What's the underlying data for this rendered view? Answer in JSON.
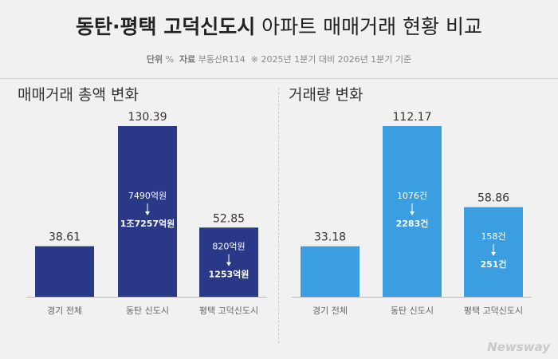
{
  "header": {
    "title_bold": "동탄·평택 고덕신도시",
    "title_light": "아파트 매매거래 현황 비교",
    "unit_label": "단위",
    "unit_value": "%",
    "source_label": "자료",
    "source_value": "부동산R114",
    "note": "※ 2025년 1분기 대비 2026년 1분기 기준"
  },
  "colors": {
    "left_bar": "#2a3888",
    "right_bar": "#3a9ee0"
  },
  "chart_data": [
    {
      "type": "bar",
      "title": "매매거래 총액 변화",
      "categories": [
        "경기 전체",
        "동탄 신도시",
        "평택 고덕신도시"
      ],
      "values": [
        38.61,
        130.39,
        52.85
      ],
      "value_labels": [
        "38.61",
        "130.39",
        "52.85"
      ],
      "annotations": [
        null,
        {
          "from": "7490억원",
          "to": "1조7257억원"
        },
        {
          "from": "820억원",
          "to": "1253억원"
        }
      ],
      "ylim": [
        0,
        130.39
      ],
      "grid": false
    },
    {
      "type": "bar",
      "title": "거래량 변화",
      "categories": [
        "경기 전체",
        "동탄 신도시",
        "평택 고덕신도시"
      ],
      "values": [
        33.18,
        112.17,
        58.86
      ],
      "value_labels": [
        "33.18",
        "112.17",
        "58.86"
      ],
      "annotations": [
        null,
        {
          "from": "1076건",
          "to": "2283건"
        },
        {
          "from": "158건",
          "to": "251건"
        }
      ],
      "ylim": [
        0,
        112.17
      ],
      "grid": false
    }
  ],
  "logo": "Newsway"
}
